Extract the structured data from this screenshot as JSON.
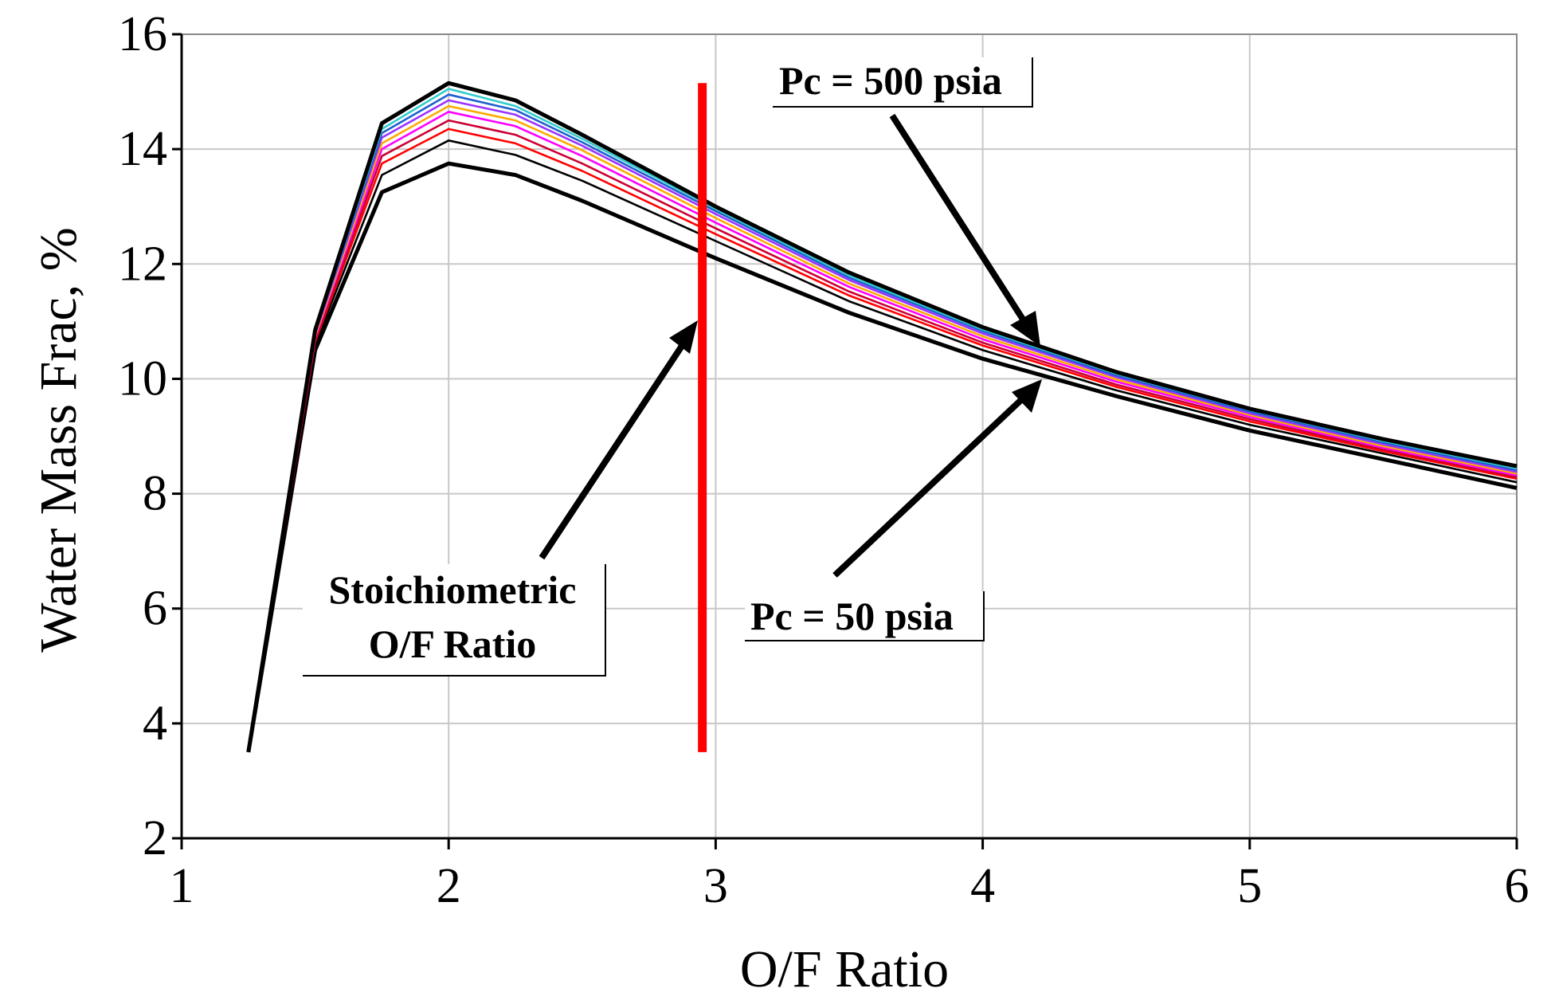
{
  "chart_data": {
    "type": "line",
    "title": "",
    "xlabel": "O/F Ratio",
    "ylabel": "Water Mass Frac, %",
    "xlim": [
      1,
      6
    ],
    "ylim": [
      2,
      16
    ],
    "xticks": [
      1,
      2,
      3,
      4,
      5,
      6
    ],
    "yticks": [
      2,
      4,
      6,
      8,
      10,
      12,
      14,
      16
    ],
    "grid": true,
    "x": [
      1.25,
      1.5,
      1.75,
      2.0,
      2.25,
      2.5,
      3.0,
      3.5,
      4.0,
      4.5,
      5.0,
      5.5,
      6.0
    ],
    "series": [
      {
        "color": "#000000",
        "values": [
          3.5,
          10.5,
          13.25,
          13.75,
          13.55,
          13.1,
          12.1,
          11.15,
          10.35,
          9.7,
          9.1,
          8.6,
          8.1
        ]
      },
      {
        "color": "#000000",
        "values": [
          3.5,
          10.6,
          13.55,
          14.15,
          13.9,
          13.45,
          12.4,
          11.35,
          10.5,
          9.8,
          9.2,
          8.7,
          8.2
        ]
      },
      {
        "color": "#ff0000",
        "values": [
          3.5,
          10.65,
          13.75,
          14.35,
          14.1,
          13.62,
          12.52,
          11.45,
          10.58,
          9.86,
          9.26,
          8.74,
          8.26
        ]
      },
      {
        "color": "#cc0033",
        "values": [
          3.5,
          10.68,
          13.88,
          14.5,
          14.25,
          13.75,
          12.62,
          11.52,
          10.63,
          9.9,
          9.3,
          8.77,
          8.29
        ]
      },
      {
        "color": "#ff00ff",
        "values": [
          3.5,
          10.72,
          14.0,
          14.65,
          14.4,
          13.88,
          12.72,
          11.6,
          10.69,
          9.95,
          9.34,
          8.8,
          8.32
        ]
      },
      {
        "color": "#ffaa00",
        "values": [
          3.5,
          10.75,
          14.1,
          14.75,
          14.5,
          13.98,
          12.8,
          11.66,
          10.74,
          9.99,
          9.37,
          8.83,
          8.35
        ]
      },
      {
        "color": "#9933ff",
        "values": [
          3.5,
          10.78,
          14.2,
          14.85,
          14.6,
          14.06,
          12.87,
          11.72,
          10.79,
          10.03,
          9.4,
          8.86,
          8.38
        ]
      },
      {
        "color": "#1f5fd0",
        "values": [
          3.5,
          10.8,
          14.28,
          14.95,
          14.68,
          14.12,
          12.92,
          11.76,
          10.83,
          10.06,
          9.43,
          8.89,
          8.41
        ]
      },
      {
        "color": "#33cccc",
        "values": [
          3.5,
          10.82,
          14.35,
          15.05,
          14.75,
          14.18,
          12.96,
          11.8,
          10.86,
          10.09,
          9.46,
          8.92,
          8.44
        ]
      },
      {
        "color": "#000000",
        "values": [
          3.5,
          10.85,
          14.45,
          15.15,
          14.85,
          14.25,
          13.0,
          11.85,
          10.9,
          10.12,
          9.48,
          8.95,
          8.48
        ]
      }
    ],
    "reference_line": {
      "x": 2.95,
      "y_range": [
        3.5,
        15.15
      ],
      "color": "#ff0000"
    },
    "annotations": {
      "top": "Pc = 500 psia",
      "bottom": "Pc = 50 psia",
      "stoich_line1": "Stoichiometric",
      "stoich_line2": "O/F Ratio"
    }
  }
}
